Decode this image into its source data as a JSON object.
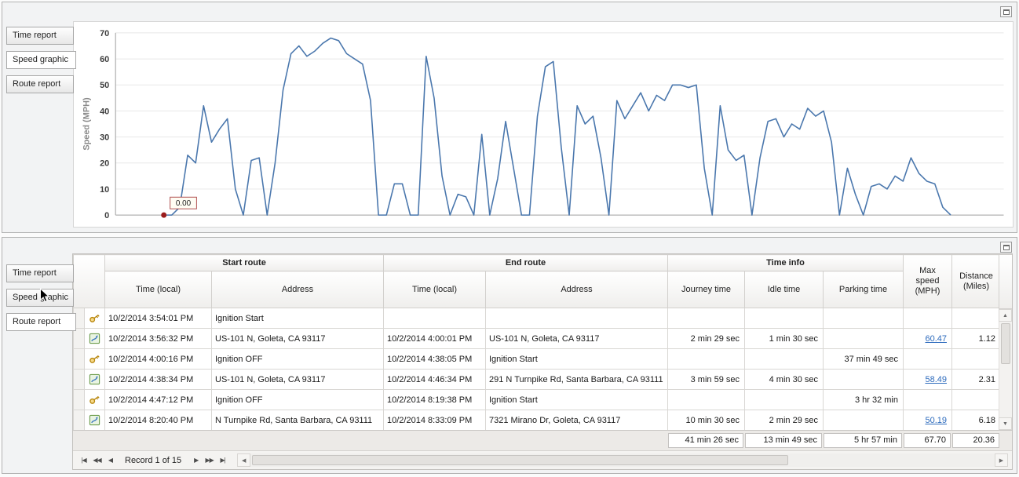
{
  "panels": {
    "top": {
      "tabs": [
        {
          "label": "Time report",
          "selected": false
        },
        {
          "label": "Speed graphic",
          "selected": true
        },
        {
          "label": "Route report",
          "selected": false
        }
      ]
    },
    "bottom": {
      "tabs": [
        {
          "label": "Time report",
          "selected": false
        },
        {
          "label": "Speed graphic",
          "selected": false
        },
        {
          "label": "Route report",
          "selected": true
        }
      ]
    }
  },
  "chart_data": {
    "type": "line",
    "title": "",
    "xlabel": "",
    "ylabel": "Speed (MPH)",
    "ylim": [
      0,
      70
    ],
    "yticks": [
      0,
      10,
      20,
      30,
      40,
      50,
      60,
      70
    ],
    "grid": true,
    "legend": false,
    "series": [
      {
        "name": "Speed",
        "color": "#4a77ad",
        "values": [
          0,
          0,
          3,
          23,
          20,
          42,
          28,
          33,
          37,
          10,
          0,
          21,
          22,
          0,
          20,
          48,
          62,
          65,
          61,
          63,
          66,
          68,
          67,
          62,
          60,
          58,
          44,
          0,
          0,
          12,
          12,
          0,
          0,
          61,
          45,
          15,
          0,
          8,
          7,
          0,
          31,
          0,
          14,
          36,
          18,
          0,
          0,
          38,
          57,
          59,
          26,
          0,
          42,
          35,
          38,
          22,
          0,
          44,
          37,
          42,
          47,
          40,
          46,
          44,
          50,
          50,
          49,
          50,
          18,
          0,
          42,
          25,
          21,
          23,
          0,
          22,
          36,
          37,
          30,
          35,
          33,
          41,
          38,
          40,
          28,
          0,
          18,
          8,
          0,
          11,
          12,
          10,
          15,
          13,
          22,
          16,
          13,
          12,
          3,
          0
        ]
      }
    ],
    "marker": {
      "index": 0,
      "value": 0,
      "label": "0.00",
      "color": "#9b1c1c"
    }
  },
  "grid": {
    "headers": {
      "start_route": "Start route",
      "end_route": "End route",
      "time_info": "Time info",
      "time_local": "Time (local)",
      "address": "Address",
      "journey": "Journey time",
      "idle": "Idle time",
      "parking": "Parking time",
      "max_speed": "Max speed (MPH)",
      "distance": "Distance (Miles)"
    },
    "link_color": "#2d6bbd",
    "rows": [
      {
        "icon": "key-icon",
        "start_time": "10/2/2014 3:54:01 PM",
        "start_address": "Ignition Start",
        "end_time": "",
        "end_address": "",
        "journey": "",
        "idle": "",
        "parking": "",
        "max_speed": "",
        "distance": ""
      },
      {
        "icon": "route-icon",
        "start_time": "10/2/2014 3:56:32 PM",
        "start_address": "US-101 N, Goleta, CA 93117",
        "end_time": "10/2/2014 4:00:01 PM",
        "end_address": "US-101 N, Goleta, CA 93117",
        "journey": "2 min 29 sec",
        "idle": "1 min 30 sec",
        "parking": "",
        "max_speed": "60.47",
        "distance": "1.12"
      },
      {
        "icon": "key-icon",
        "start_time": "10/2/2014 4:00:16 PM",
        "start_address": "Ignition OFF",
        "end_time": "10/2/2014 4:38:05 PM",
        "end_address": "Ignition Start",
        "journey": "",
        "idle": "",
        "parking": "37 min 49 sec",
        "max_speed": "",
        "distance": ""
      },
      {
        "icon": "route-icon",
        "start_time": "10/2/2014 4:38:34 PM",
        "start_address": "US-101 N, Goleta, CA 93117",
        "end_time": "10/2/2014 4:46:34 PM",
        "end_address": "291 N Turnpike Rd, Santa Barbara, CA 93111",
        "journey": "3 min 59 sec",
        "idle": "4 min 30 sec",
        "parking": "",
        "max_speed": "58.49",
        "distance": "2.31"
      },
      {
        "icon": "key-icon",
        "start_time": "10/2/2014 4:47:12 PM",
        "start_address": "Ignition OFF",
        "end_time": "10/2/2014 8:19:38 PM",
        "end_address": "Ignition Start",
        "journey": "",
        "idle": "",
        "parking": "3 hr 32 min",
        "max_speed": "",
        "distance": ""
      },
      {
        "icon": "route-icon",
        "start_time": "10/2/2014 8:20:40 PM",
        "start_address": "N Turnpike Rd, Santa Barbara, CA 93111",
        "end_time": "10/2/2014 8:33:09 PM",
        "end_address": "7321 Mirano Dr, Goleta, CA 93117",
        "journey": "10 min 30 sec",
        "idle": "2 min 29 sec",
        "parking": "",
        "max_speed": "50.19",
        "distance": "6.18"
      }
    ],
    "summary": {
      "journey": "41 min 26 sec",
      "idle": "13 min 49 sec",
      "parking": "5 hr 57 min",
      "max_speed": "67.70",
      "distance": "20.36"
    }
  },
  "navigator": {
    "record_label": "Record 1 of 15",
    "left_buttons": [
      {
        "name": "first-record-button",
        "glyph": "|◀"
      },
      {
        "name": "prev-page-button",
        "glyph": "◀◀"
      },
      {
        "name": "prev-record-button",
        "glyph": "◀"
      }
    ],
    "right_buttons": [
      {
        "name": "next-record-button",
        "glyph": "▶"
      },
      {
        "name": "next-page-button",
        "glyph": "▶▶"
      },
      {
        "name": "last-record-button",
        "glyph": "▶|"
      }
    ]
  }
}
